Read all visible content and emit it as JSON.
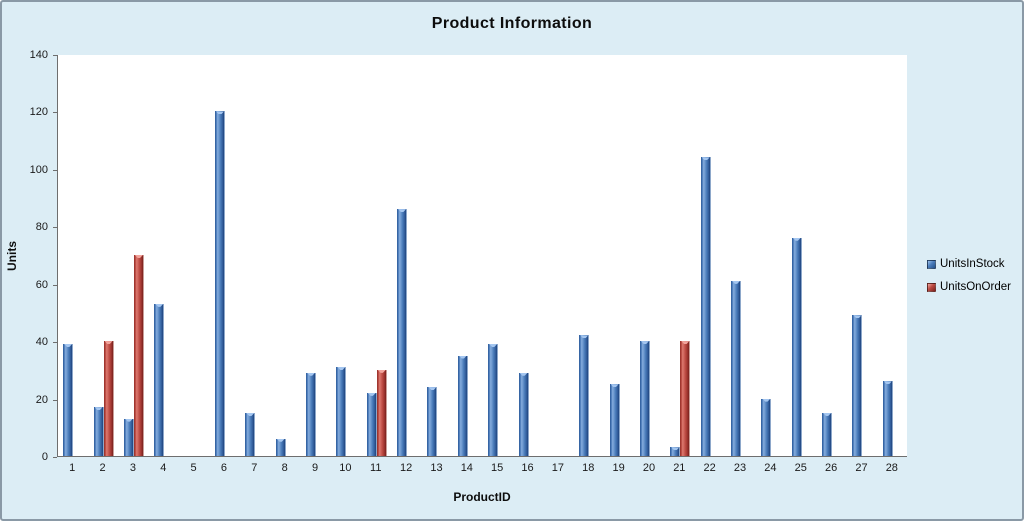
{
  "window": {
    "title": "Product Information"
  },
  "colors": {
    "background": "#DCEDF5",
    "frame_border": "#8A99A6",
    "plot_background": "#FFFFFF",
    "axis_line": "#6E6E6E",
    "series_in_stock": "#3D6EB4",
    "series_on_order": "#BC4A42"
  },
  "chart_data": {
    "type": "bar",
    "title": "Product Information",
    "xlabel": "ProductID",
    "ylabel": "Units",
    "ylim": [
      0,
      140
    ],
    "yticks": [
      0,
      20,
      40,
      60,
      80,
      100,
      120,
      140
    ],
    "grid": false,
    "legend_position": "right",
    "categories": [
      "1",
      "2",
      "3",
      "4",
      "5",
      "6",
      "7",
      "8",
      "9",
      "10",
      "11",
      "12",
      "13",
      "14",
      "15",
      "16",
      "17",
      "18",
      "19",
      "20",
      "21",
      "22",
      "23",
      "24",
      "25",
      "26",
      "27",
      "28"
    ],
    "series": [
      {
        "name": "UnitsInStock",
        "color": "#3D6EB4",
        "values": [
          39,
          17,
          13,
          53,
          0,
          120,
          15,
          6,
          29,
          31,
          22,
          86,
          24,
          35,
          39,
          29,
          0,
          42,
          25,
          40,
          3,
          104,
          61,
          20,
          76,
          15,
          49,
          26
        ]
      },
      {
        "name": "UnitsOnOrder",
        "color": "#BC4A42",
        "values": [
          0,
          40,
          70,
          0,
          0,
          0,
          0,
          0,
          0,
          0,
          30,
          0,
          0,
          0,
          0,
          0,
          0,
          0,
          0,
          0,
          40,
          0,
          0,
          0,
          0,
          0,
          0,
          0
        ]
      }
    ]
  }
}
